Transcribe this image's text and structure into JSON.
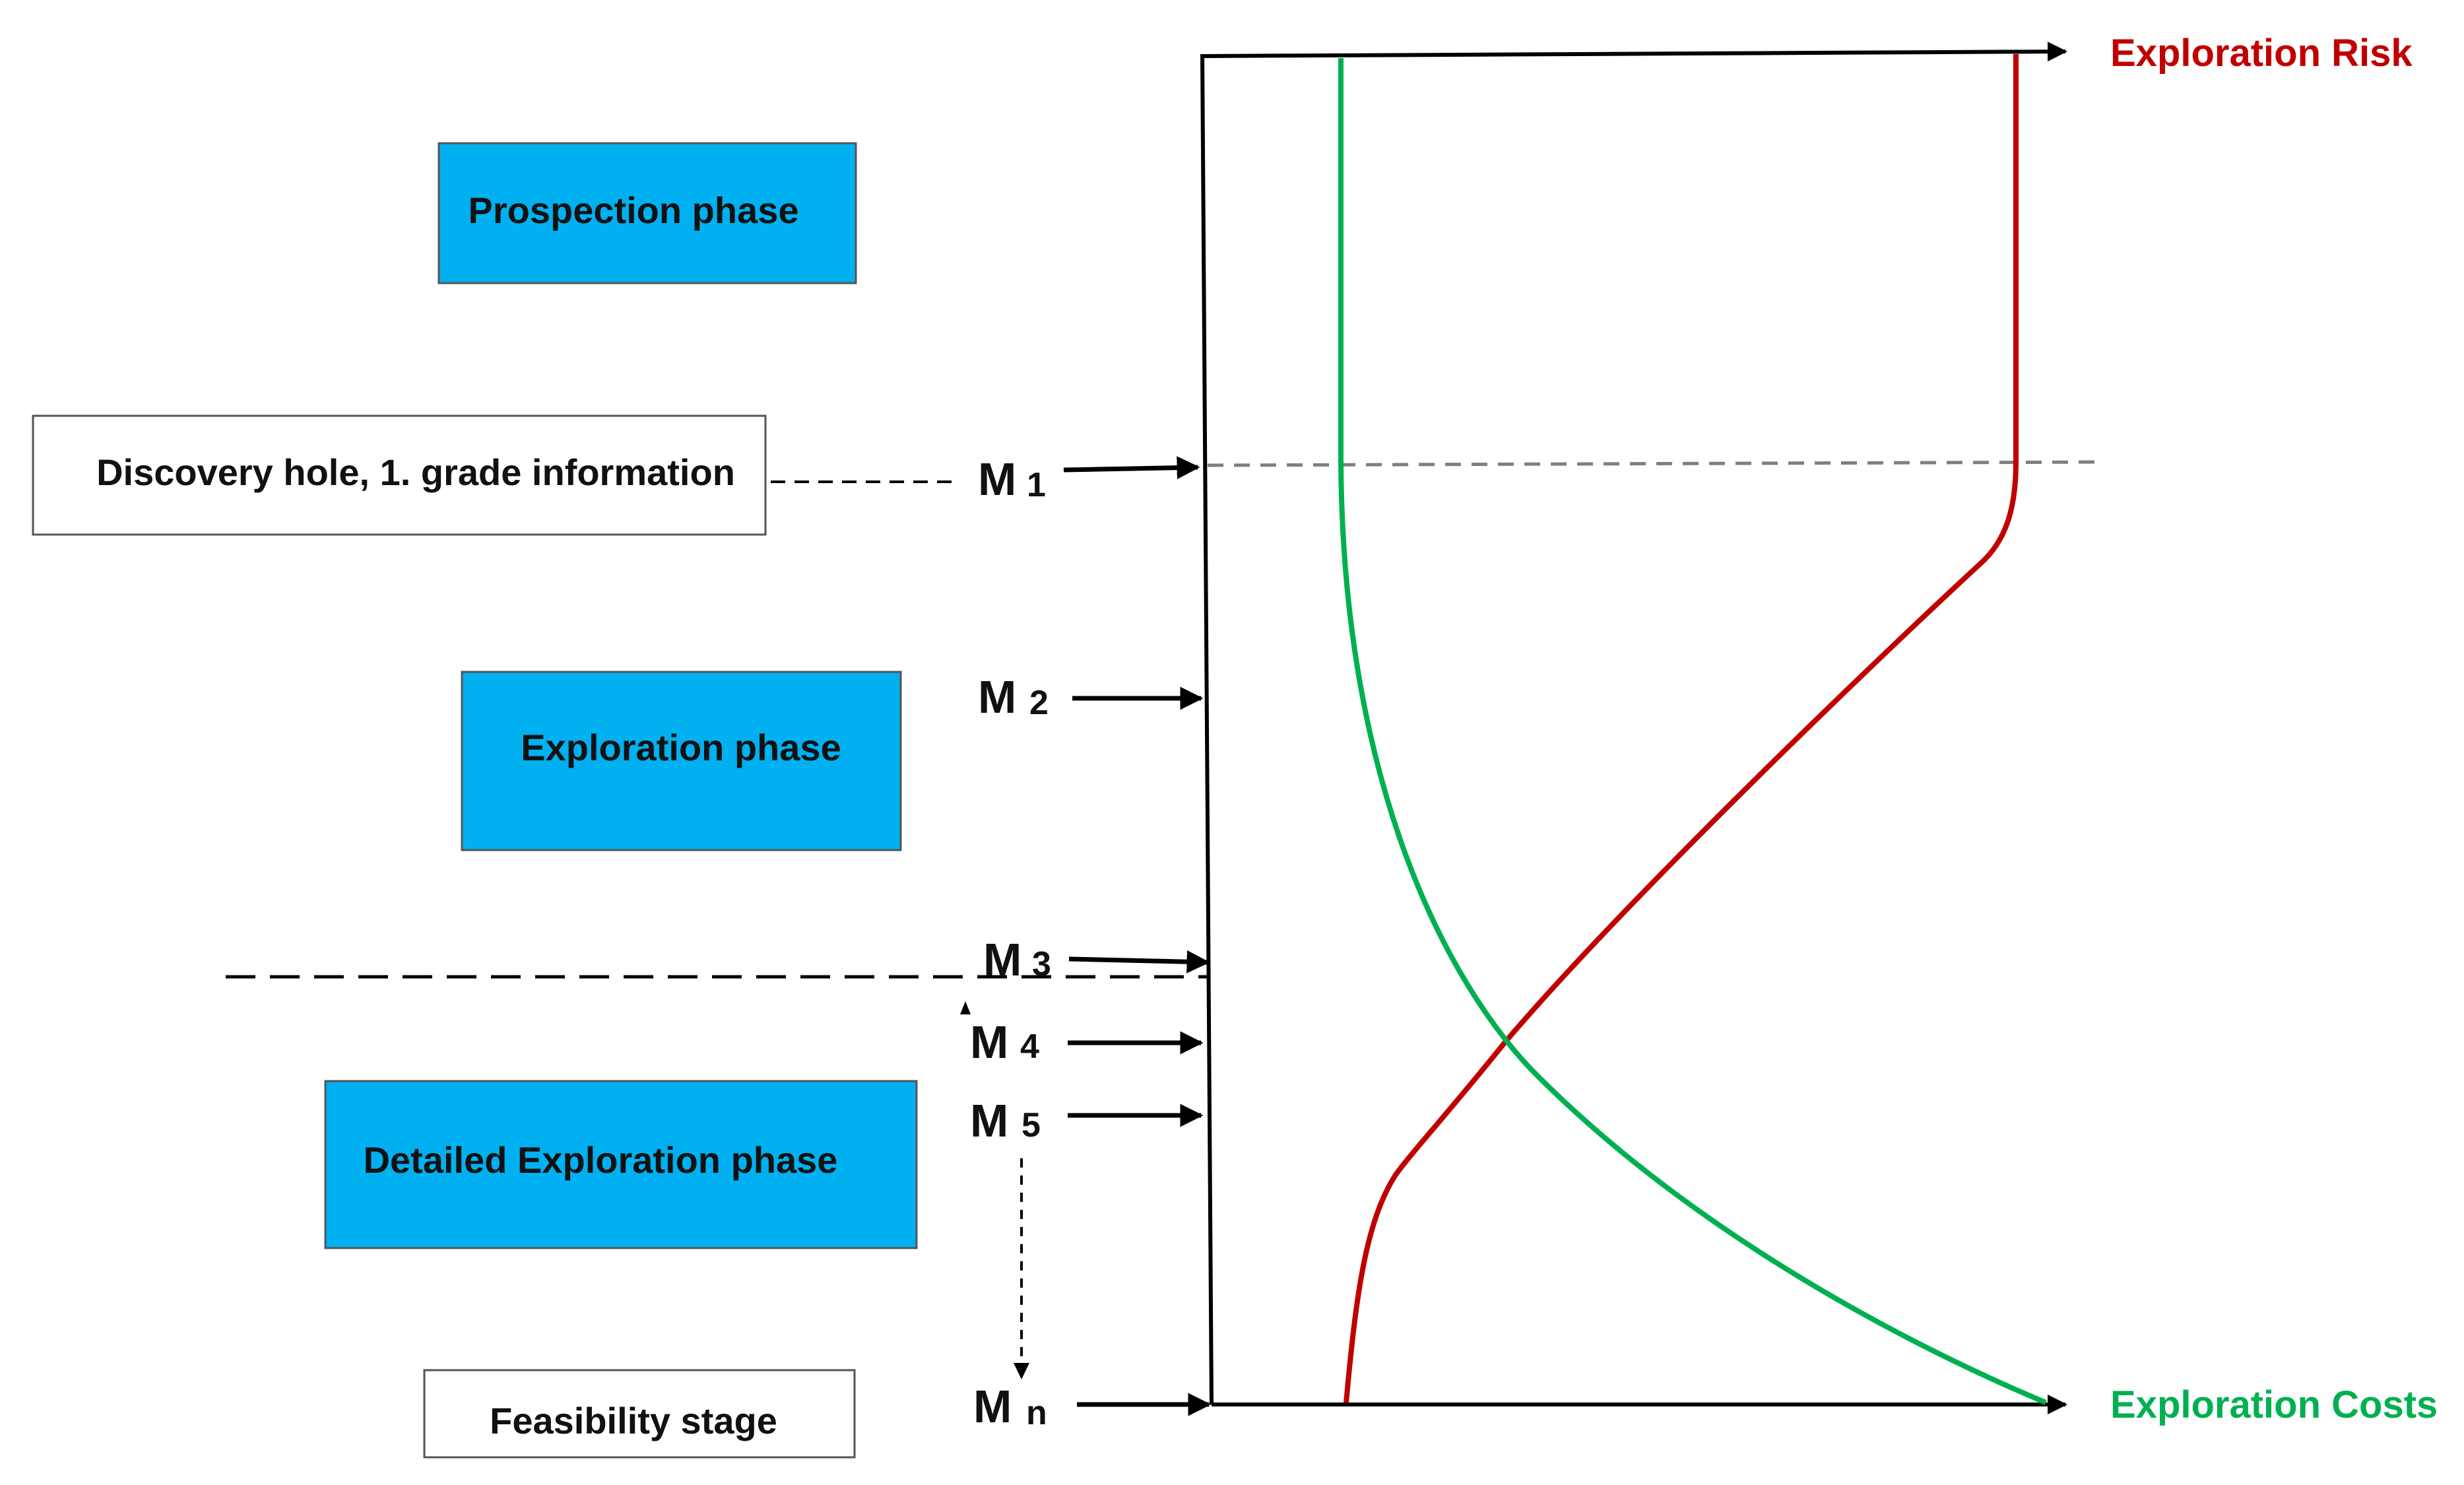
{
  "colors": {
    "phase_fill": "#00b0f0",
    "risk": "#c00000",
    "costs": "#00b050",
    "line": "#000000",
    "grid_dash": "#7f7f7f"
  },
  "phases": {
    "prospection": "Prospection phase",
    "discovery": "Discovery hole, 1. grade information",
    "exploration": "Exploration phase",
    "detailed": "Detailed  Exploration phase",
    "feasibility": "Feasibility stage"
  },
  "milestones": [
    {
      "letter": "M",
      "sub": "1"
    },
    {
      "letter": "M",
      "sub": "2"
    },
    {
      "letter": "M",
      "sub": "3"
    },
    {
      "letter": "M",
      "sub": "4"
    },
    {
      "letter": "M",
      "sub": "5"
    },
    {
      "letter": "M",
      "sub": "n"
    }
  ],
  "axes": {
    "risk_label": "Exploration Risk",
    "costs_label": "Exploration Costs"
  }
}
